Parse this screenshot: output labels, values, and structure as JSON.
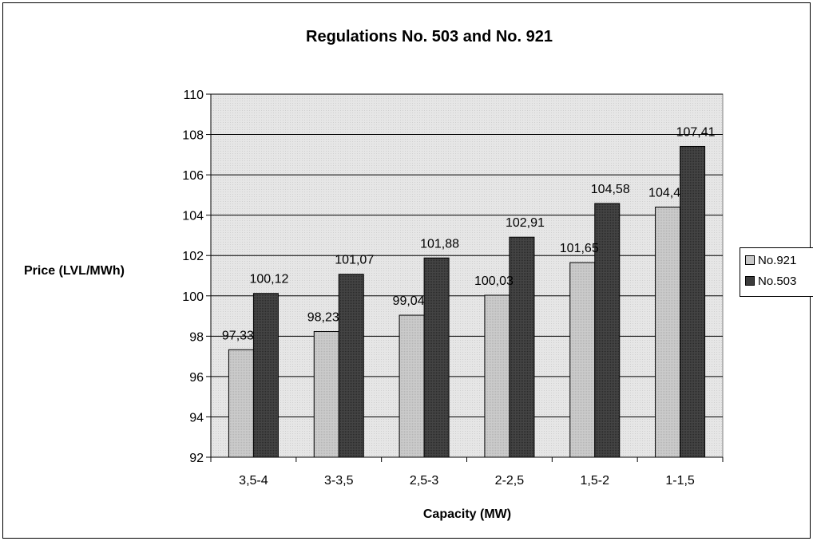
{
  "chart_data": {
    "type": "bar",
    "title": "Regulations No. 503 and No. 921",
    "xlabel": "Capacity (MW)",
    "ylabel": "Price (LVL/MWh)",
    "ylim": [
      92,
      110
    ],
    "yticks": [
      92,
      94,
      96,
      98,
      100,
      102,
      104,
      106,
      108,
      110
    ],
    "grid": true,
    "legend_position": "right",
    "categories": [
      "3,5-4",
      "3-3,5",
      "2,5-3",
      "2-2,5",
      "1,5-2",
      "1-1,5"
    ],
    "series": [
      {
        "name": "No.921",
        "values": [
          97.33,
          98.23,
          99.04,
          100.03,
          101.65,
          104.4
        ],
        "labels": [
          "97,33",
          "98,23",
          "99,04",
          "100,03",
          "101,65",
          "104,4"
        ],
        "color": "#c8c8c8"
      },
      {
        "name": "No.503",
        "values": [
          100.12,
          101.07,
          101.88,
          102.91,
          104.58,
          107.41
        ],
        "labels": [
          "100,12",
          "101,07",
          "101,88",
          "102,91",
          "104,58",
          "107,41"
        ],
        "color": "#3c3c3c"
      }
    ]
  },
  "colors": {
    "plot_background": "#e2e2e2",
    "gridline": "#000000"
  }
}
